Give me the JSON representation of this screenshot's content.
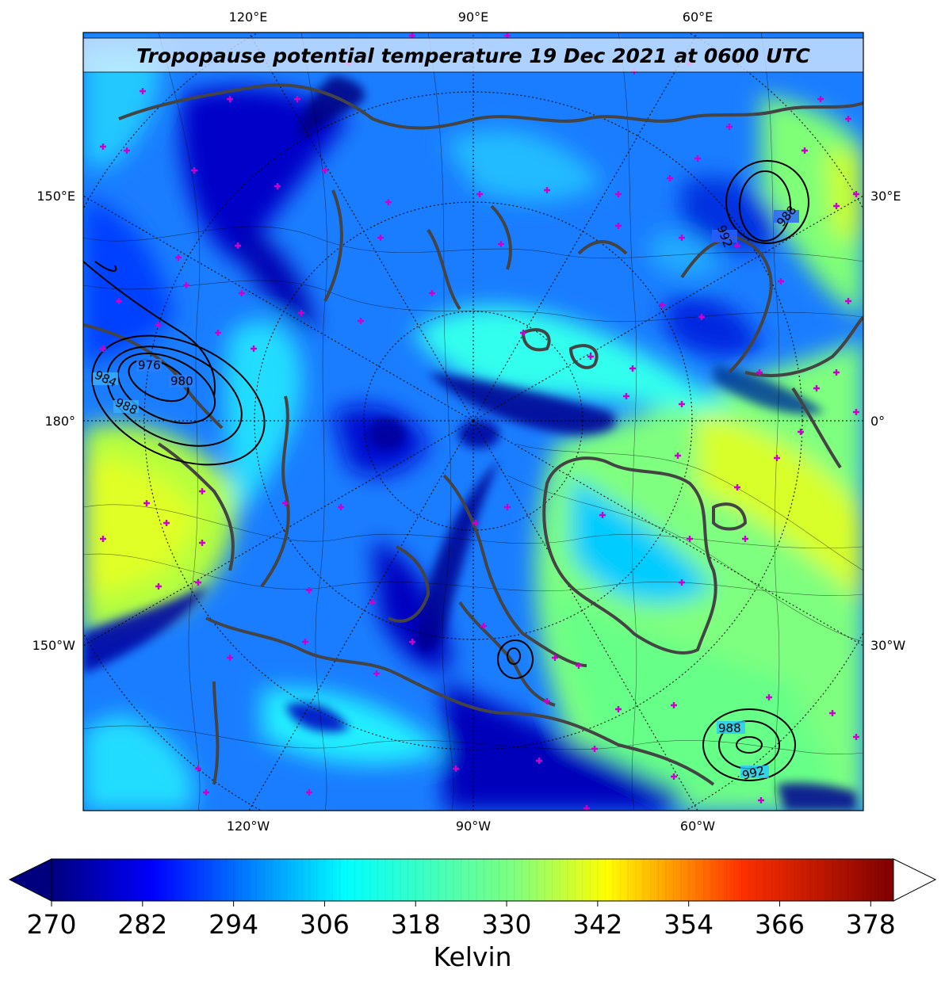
{
  "title": "Tropopause potential temperature 19 Dec 2021 at 0600 UTC",
  "map": {
    "projection": "north-polar-stereographic",
    "graticule_style": "dotted",
    "coastline_color": "#444444",
    "station_marker_color": "#cc00cc",
    "lon_labels_top": [
      "120°E",
      "90°E",
      "60°E"
    ],
    "lon_labels_bottom": [
      "120°W",
      "90°W",
      "60°W"
    ],
    "lat_labels_left": [
      "150°E",
      "180°",
      "150°W"
    ],
    "lat_labels_right": [
      "30°E",
      "0°",
      "30°W"
    ]
  },
  "isobars": [
    {
      "label": "976",
      "region": "left-center"
    },
    {
      "label": "980",
      "region": "left-center"
    },
    {
      "label": "984",
      "region": "left-center"
    },
    {
      "label": "988",
      "region": "left-center"
    },
    {
      "label": "988",
      "region": "top-right"
    },
    {
      "label": "992",
      "region": "top-right"
    },
    {
      "label": "988",
      "region": "bottom-right"
    },
    {
      "label": "992",
      "region": "bottom-right"
    }
  ],
  "colorbar": {
    "label": "Kelvin",
    "min": 270,
    "max": 381,
    "extend": "both",
    "ticks": [
      "270",
      "282",
      "294",
      "306",
      "318",
      "330",
      "342",
      "354",
      "366",
      "378"
    ],
    "colormap": "jet",
    "colors": [
      "#00007f",
      "#0000ff",
      "#007fff",
      "#00ffff",
      "#7fff7f",
      "#ffff00",
      "#ff7f00",
      "#ff0000",
      "#7f0000"
    ],
    "under_color": "#00007f",
    "over_color": "#ffffff"
  }
}
